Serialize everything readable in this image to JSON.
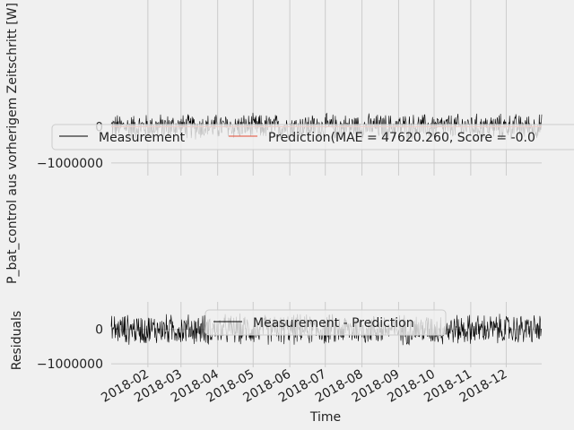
{
  "chart_data": [
    {
      "type": "line",
      "title": "",
      "xlabel": "",
      "ylabel": "P_bat_control aus vorherigem Zeitschritt [W]",
      "yticks": [
        {
          "value": 0,
          "label": "0"
        },
        {
          "value": -1000000,
          "label": "−1000000"
        }
      ],
      "ylim": [
        -1350000,
        3500000
      ],
      "xlim": [
        "2018-01-01",
        "2018-12-31"
      ],
      "legend": "center, above plot area",
      "series": [
        {
          "name": "Measurement",
          "color": "#000000",
          "approx_range": [
            -400000,
            400000
          ]
        },
        {
          "name": "Prediction(MAE = 47620.260, Score = -0.0",
          "color": "#e24a33",
          "approx_value": 0
        }
      ]
    },
    {
      "type": "line",
      "title": "",
      "xlabel": "Time",
      "ylabel": "Residuals",
      "yticks": [
        {
          "value": 0,
          "label": "0"
        },
        {
          "value": -1000000,
          "label": "−1000000"
        }
      ],
      "ylim": [
        -1100000,
        800000
      ],
      "xlim": [
        "2018-01-01",
        "2018-12-31"
      ],
      "xticks": [
        "2018-02",
        "2018-03",
        "2018-04",
        "2018-05",
        "2018-06",
        "2018-07",
        "2018-08",
        "2018-09",
        "2018-10",
        "2018-11",
        "2018-12"
      ],
      "legend": "top center",
      "series": [
        {
          "name": "Measurement - Prediction",
          "color": "#000000",
          "approx_range": [
            -500000,
            500000
          ]
        }
      ]
    }
  ],
  "colors": {
    "background": "#f0f0f0",
    "grid": "#cbcbcb",
    "measurement": "#000000",
    "prediction": "#e24a33"
  }
}
